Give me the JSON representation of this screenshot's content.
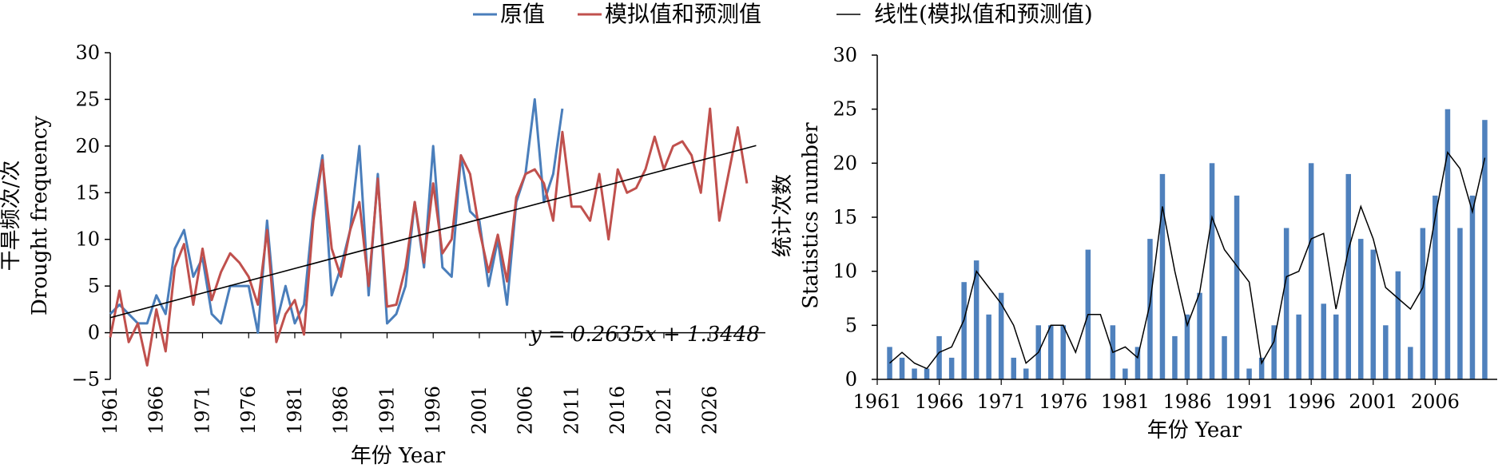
{
  "legend": {
    "items": [
      {
        "label": "原值",
        "color": "#4A7EBB"
      },
      {
        "label": "模拟值和预测值",
        "color": "#C0504D"
      },
      {
        "label": "线性(模拟值和预测值)",
        "color": "#000000"
      }
    ]
  },
  "chart_data": [
    {
      "type": "line",
      "xlabel": "年份 Year",
      "ylabel_lines": [
        "干旱频次/次",
        "Drought frequency"
      ],
      "xlim": [
        1961,
        2032
      ],
      "ylim": [
        -5,
        30
      ],
      "yticks": [
        -5,
        0,
        5,
        10,
        15,
        20,
        25,
        30
      ],
      "xticks": [
        1961,
        1966,
        1971,
        1976,
        1981,
        1986,
        1991,
        1996,
        2001,
        2006,
        2011,
        2016,
        2021,
        2026
      ],
      "equation": "y = 0.2635x  + 1.3448",
      "trend": {
        "slope": 0.2635,
        "intercept": 1.3448,
        "x_start": 1961,
        "x_end": 2031
      },
      "series": [
        {
          "name": "原值",
          "color": "#4A7EBB",
          "x_start": 1961,
          "values": [
            2,
            3,
            2,
            1,
            1,
            4,
            2,
            9,
            11,
            6,
            8,
            2,
            1,
            5,
            5,
            5,
            0,
            12,
            1,
            5,
            1,
            3,
            13,
            19,
            4,
            7,
            11,
            20,
            4,
            17,
            1,
            2,
            5,
            14,
            7,
            20,
            7,
            6,
            19,
            13,
            12,
            5,
            10,
            3,
            14,
            17,
            25,
            14,
            17,
            24
          ]
        },
        {
          "name": "模拟值和预测值",
          "color": "#C0504D",
          "x_start": 1961,
          "values": [
            -0.5,
            4.5,
            -1,
            1,
            -3.5,
            2.5,
            -2,
            7,
            9.5,
            3,
            9,
            3.5,
            6.5,
            8.5,
            7.5,
            6,
            3,
            11,
            -1,
            2,
            3.5,
            -0.2,
            12,
            18.5,
            9,
            6,
            11,
            14,
            5,
            16.5,
            2.8,
            3,
            7,
            14,
            7.5,
            16,
            8.5,
            10,
            19,
            17,
            11,
            6.5,
            10.5,
            5.5,
            14.5,
            17,
            17.5,
            16,
            12,
            21.5,
            13.5,
            13.5,
            12,
            17,
            10,
            17.5,
            15,
            15.5,
            17.5,
            21,
            17.5,
            20,
            20.5,
            19,
            15,
            24,
            12,
            17,
            22,
            16
          ]
        }
      ]
    },
    {
      "type": "bar",
      "xlabel": "年份 Year",
      "ylabel_lines": [
        "统计次数",
        "Statistics number"
      ],
      "xlim": [
        1961,
        2011
      ],
      "ylim": [
        0,
        30
      ],
      "yticks": [
        0,
        5,
        10,
        15,
        20,
        25,
        30
      ],
      "xticks": [
        1961,
        1966,
        1971,
        1976,
        1981,
        1986,
        1991,
        1996,
        2001,
        2006
      ],
      "bars": {
        "x_start": 1962,
        "values": [
          3,
          2,
          1,
          1,
          4,
          2,
          9,
          11,
          6,
          8,
          2,
          1,
          5,
          5,
          5,
          0,
          12,
          0,
          5,
          1,
          3,
          13,
          19,
          4,
          6,
          8,
          20,
          4,
          17,
          1,
          2,
          5,
          14,
          6,
          20,
          7,
          6,
          19,
          13,
          12,
          5,
          10,
          3,
          14,
          17,
          25,
          14,
          17,
          24
        ],
        "color": "#4F81BD"
      },
      "line": {
        "x_start": 1962,
        "values": [
          1.5,
          2.5,
          1.5,
          1,
          2.5,
          3,
          5.5,
          10,
          8.5,
          7,
          5,
          1.5,
          2.5,
          5,
          5,
          2.5,
          6,
          6,
          2.5,
          3,
          2,
          7,
          16,
          10,
          5,
          8,
          15,
          12,
          10.5,
          9,
          1.5,
          3.5,
          9.5,
          10,
          13,
          13.5,
          6.5,
          12,
          16,
          13,
          8.5,
          7.5,
          6.5,
          8.5,
          15,
          21,
          19.5,
          15.5,
          20.5
        ],
        "color": "#000000"
      }
    }
  ]
}
